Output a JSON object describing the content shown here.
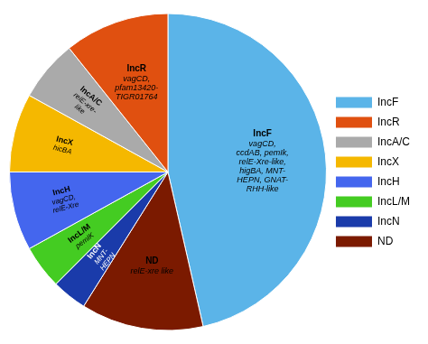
{
  "chart_data": {
    "type": "pie",
    "categories": [
      "IncF",
      "ND",
      "IncN",
      "IncL/M",
      "IncH",
      "IncX",
      "IncA/C",
      "IncR"
    ],
    "values": [
      52,
      14,
      4,
      5,
      9,
      9,
      7,
      12
    ],
    "colors": [
      "#5BB4E8",
      "#7B1A00",
      "#1A3BAA",
      "#44CC22",
      "#4466EE",
      "#F5B800",
      "#AAAAAA",
      "#E05010"
    ],
    "annotations": [
      {
        "category": "IncF",
        "text": "IncF",
        "note": "vagCD,\nccdAB, pemIk,\nrelE-Xre-like,\nhigBA, MNT-\nHEPN, GNAT-\nRHH-like",
        "color": "black"
      },
      {
        "category": "ND",
        "text": "ND",
        "note": "relE-xre like",
        "color": "black"
      },
      {
        "category": "IncN",
        "text": "IncN",
        "note": "MNT-\nHEPN",
        "color": "white"
      },
      {
        "category": "IncL/M",
        "text": "IncL/M",
        "note": "pemIK",
        "color": "black"
      },
      {
        "category": "IncH",
        "text": "IncH",
        "note": "vagCD,\nrelE-Xre",
        "color": "black"
      },
      {
        "category": "IncX",
        "text": "IncX",
        "note": "hicBA",
        "color": "black"
      },
      {
        "category": "IncA/C",
        "text": "IncA/C",
        "note": "relE-xre-\nlike",
        "color": "black"
      },
      {
        "category": "IncR",
        "text": "IncR",
        "note": "vagCD,\npfam13420-\nTIGR01764",
        "color": "black"
      }
    ],
    "legend": "right",
    "legend_entries": [
      {
        "name": "IncF",
        "color": "#5BB4E8"
      },
      {
        "name": "IncR",
        "color": "#E05010"
      },
      {
        "name": "IncA/C",
        "color": "#AAAAAA"
      },
      {
        "name": "IncX",
        "color": "#F5B800"
      },
      {
        "name": "IncH",
        "color": "#4466EE"
      },
      {
        "name": "IncL/M",
        "color": "#44CC22"
      },
      {
        "name": "IncN",
        "color": "#1A3BAA"
      },
      {
        "name": "ND",
        "color": "#7B1A00"
      }
    ]
  }
}
